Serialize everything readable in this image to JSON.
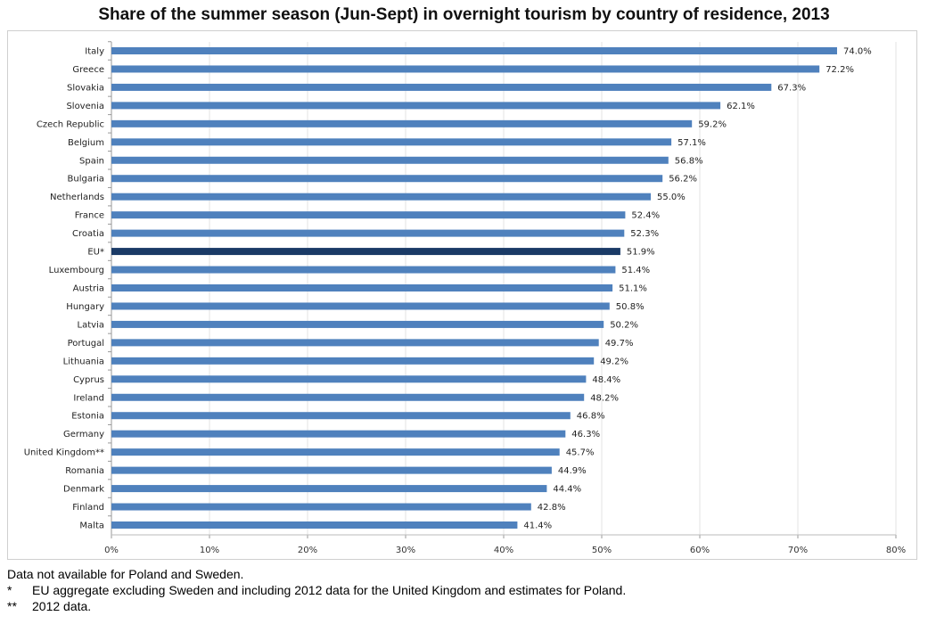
{
  "chart_data": {
    "type": "bar",
    "orientation": "horizontal",
    "title": "Share of the summer season (Jun-Sept) in overnight tourism by country of residence, 2013",
    "categories": [
      "Italy",
      "Greece",
      "Slovakia",
      "Slovenia",
      "Czech Republic",
      "Belgium",
      "Spain",
      "Bulgaria",
      "Netherlands",
      "France",
      "Croatia",
      "EU*",
      "Luxembourg",
      "Austria",
      "Hungary",
      "Latvia",
      "Portugal",
      "Lithuania",
      "Cyprus",
      "Ireland",
      "Estonia",
      "Germany",
      "United Kingdom**",
      "Romania",
      "Denmark",
      "Finland",
      "Malta"
    ],
    "values": [
      74.0,
      72.2,
      67.3,
      62.1,
      59.2,
      57.1,
      56.8,
      56.2,
      55.0,
      52.4,
      52.3,
      51.9,
      51.4,
      51.1,
      50.8,
      50.2,
      49.7,
      49.2,
      48.4,
      48.2,
      46.8,
      46.3,
      45.7,
      44.9,
      44.4,
      42.8,
      41.4
    ],
    "data_labels": [
      "74.0%",
      "72.2%",
      "67.3%",
      "62.1%",
      "59.2%",
      "57.1%",
      "56.8%",
      "56.2%",
      "55.0%",
      "52.4%",
      "52.3%",
      "51.9%",
      "51.4%",
      "51.1%",
      "50.8%",
      "50.2%",
      "49.7%",
      "49.2%",
      "48.4%",
      "48.2%",
      "46.8%",
      "46.3%",
      "45.7%",
      "44.9%",
      "44.4%",
      "42.8%",
      "41.4%"
    ],
    "highlight": "EU*",
    "xlim": [
      0,
      80
    ],
    "x_ticks": [
      "0%",
      "10%",
      "20%",
      "30%",
      "40%",
      "50%",
      "60%",
      "70%",
      "80%"
    ],
    "grid": "vertical",
    "colors": {
      "bar": "#4f81bd",
      "highlight": "#1a3a66"
    }
  },
  "footnotes": {
    "line1": "Data not available for Poland and Sweden.",
    "mark2": "*",
    "line2": "EU aggregate excluding Sweden and including 2012 data for the United Kingdom and estimates for Poland.",
    "mark3": "**",
    "line3": "2012 data."
  }
}
